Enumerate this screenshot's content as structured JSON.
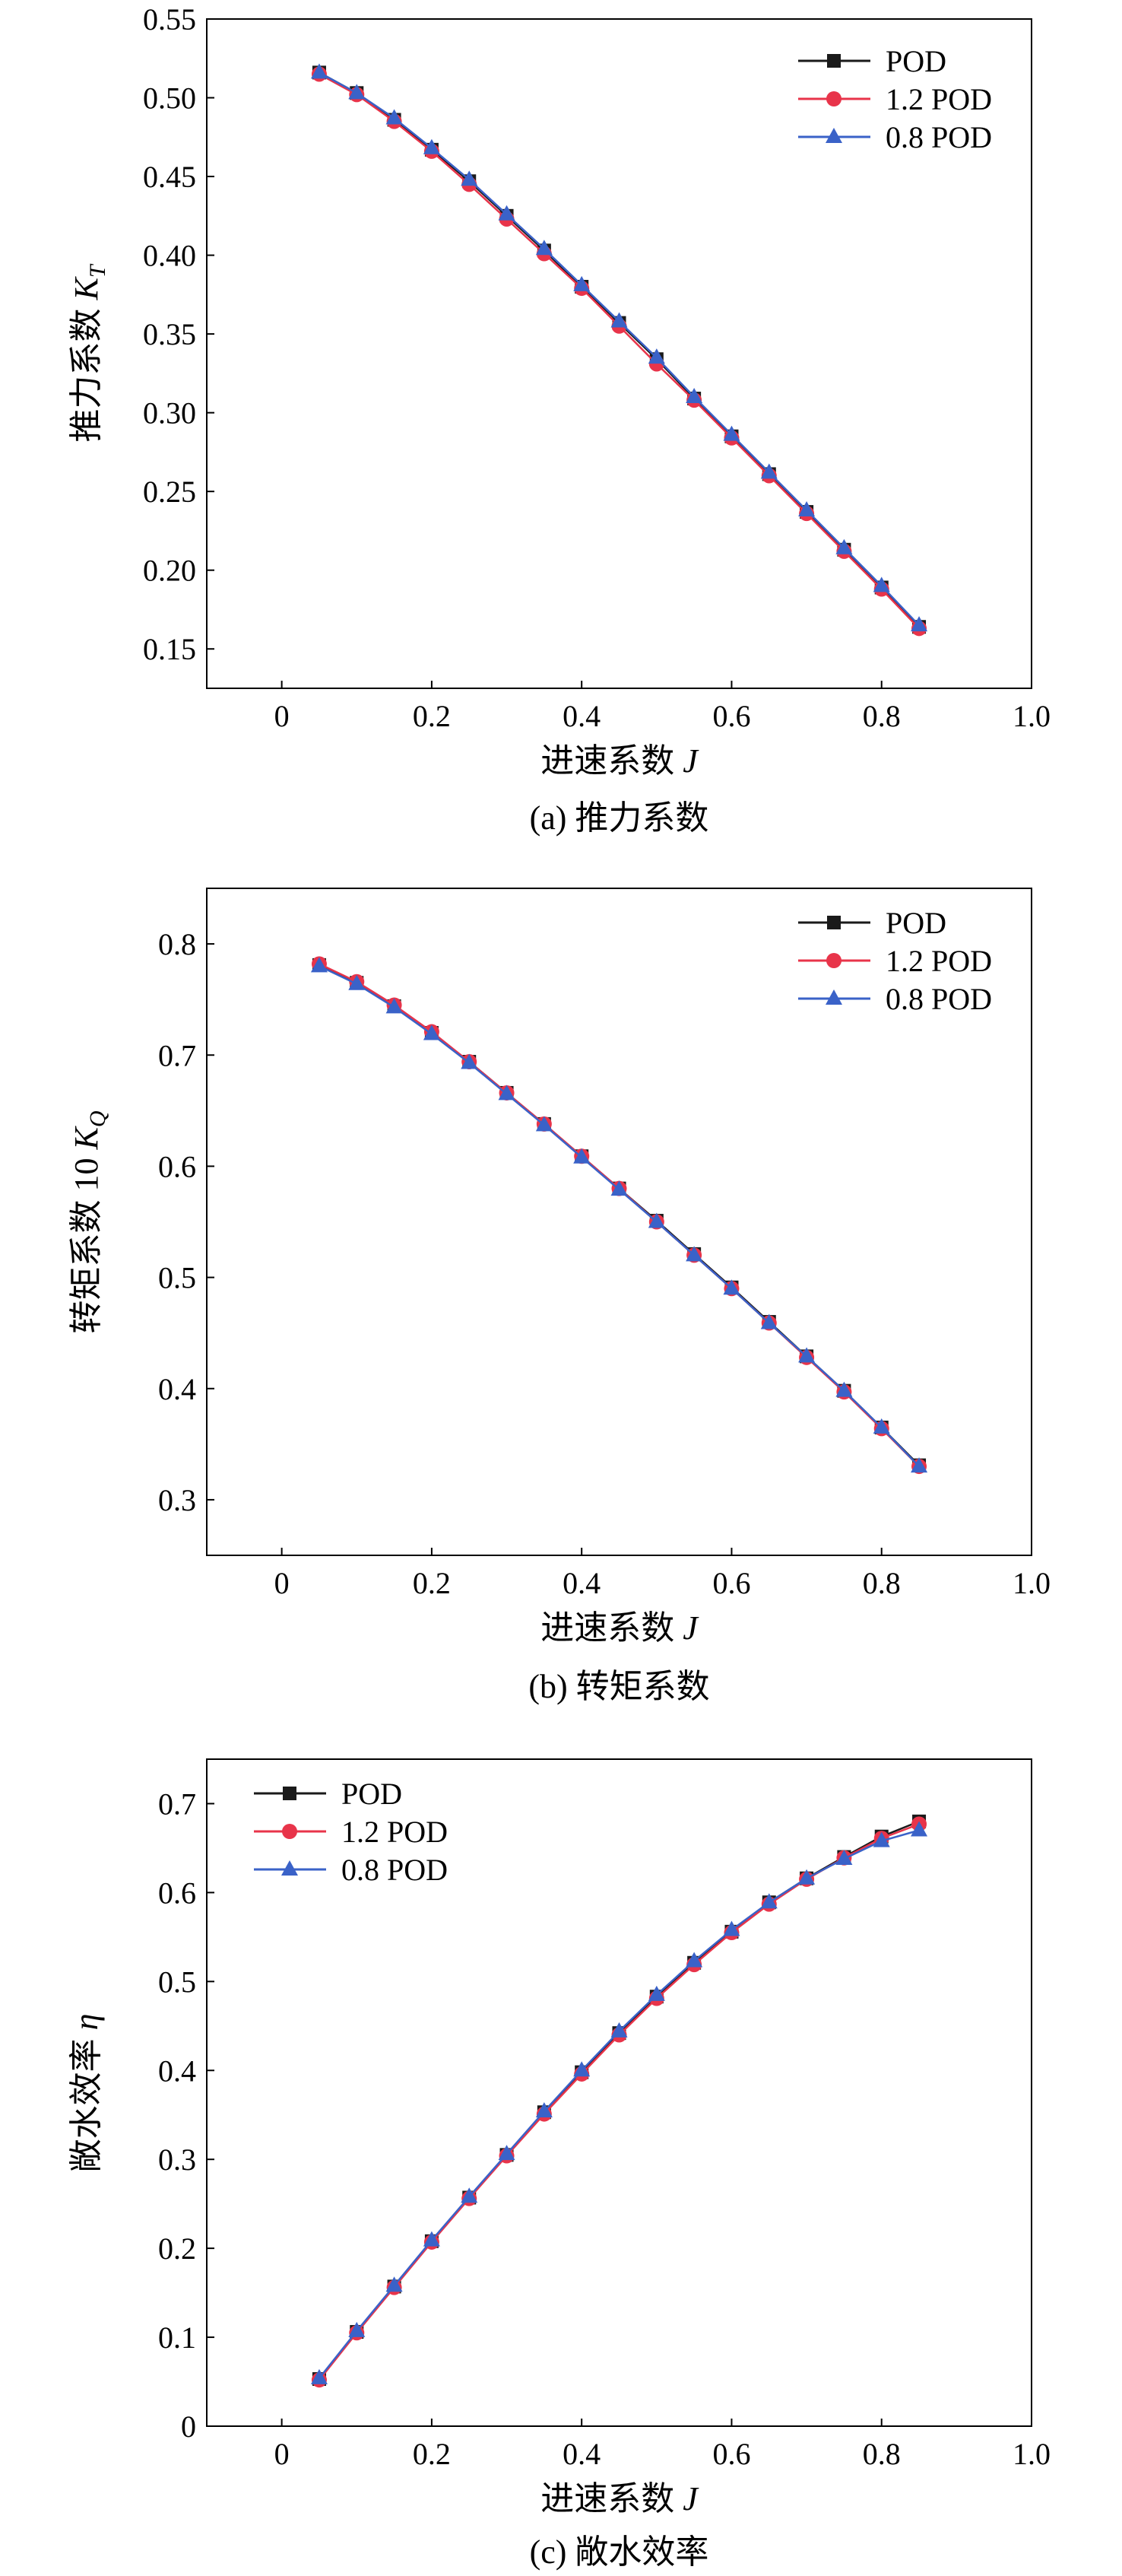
{
  "chart_data": [
    {
      "type": "line",
      "panel": "(a)",
      "caption": "(a) 推力系数",
      "xlabel": "进速系数 J",
      "ylabel": "推力系数 K_T",
      "xlim": [
        -0.1,
        1.0
      ],
      "ylim": [
        0.125,
        0.55
      ],
      "x_ticks": [
        0,
        0.2,
        0.4,
        0.6,
        0.8,
        1.0
      ],
      "y_ticks": [
        0.15,
        0.2,
        0.25,
        0.3,
        0.35,
        0.4,
        0.45,
        0.5,
        0.55
      ],
      "legend_position": "top-right",
      "grid": false,
      "x": [
        0.05,
        0.1,
        0.15,
        0.2,
        0.25,
        0.3,
        0.35,
        0.4,
        0.45,
        0.5,
        0.55,
        0.6,
        0.65,
        0.7,
        0.75,
        0.8,
        0.85
      ],
      "series": [
        {
          "name": "POD",
          "color": "#1a1a1a",
          "marker": "square",
          "values": [
            0.516,
            0.503,
            0.486,
            0.467,
            0.447,
            0.425,
            0.403,
            0.38,
            0.357,
            0.334,
            0.309,
            0.285,
            0.261,
            0.237,
            0.213,
            0.189,
            0.164
          ]
        },
        {
          "name": "1.2 POD",
          "color": "#e8344a",
          "marker": "circle",
          "values": [
            0.515,
            0.502,
            0.485,
            0.466,
            0.445,
            0.423,
            0.401,
            0.379,
            0.355,
            0.331,
            0.308,
            0.284,
            0.26,
            0.236,
            0.212,
            0.188,
            0.163
          ]
        },
        {
          "name": "0.8 POD",
          "color": "#3a62c8",
          "marker": "triangle",
          "values": [
            0.516,
            0.503,
            0.487,
            0.468,
            0.448,
            0.426,
            0.404,
            0.381,
            0.358,
            0.335,
            0.31,
            0.286,
            0.262,
            0.238,
            0.214,
            0.19,
            0.165
          ]
        }
      ]
    },
    {
      "type": "line",
      "panel": "(b)",
      "caption": "(b) 转矩系数",
      "xlabel": "进速系数 J",
      "ylabel": "转矩系数 10 K_Q",
      "xlim": [
        -0.1,
        1.0
      ],
      "ylim": [
        0.25,
        0.85
      ],
      "x_ticks": [
        0,
        0.2,
        0.4,
        0.6,
        0.8,
        1.0
      ],
      "y_ticks": [
        0.3,
        0.4,
        0.5,
        0.6,
        0.7,
        0.8
      ],
      "legend_position": "top-right",
      "grid": false,
      "x": [
        0.05,
        0.1,
        0.15,
        0.2,
        0.25,
        0.3,
        0.35,
        0.4,
        0.45,
        0.5,
        0.55,
        0.6,
        0.65,
        0.7,
        0.75,
        0.8,
        0.85
      ],
      "series": [
        {
          "name": "POD",
          "color": "#1a1a1a",
          "marker": "square",
          "values": [
            0.781,
            0.765,
            0.744,
            0.72,
            0.694,
            0.666,
            0.638,
            0.609,
            0.58,
            0.551,
            0.521,
            0.491,
            0.46,
            0.429,
            0.398,
            0.365,
            0.331
          ]
        },
        {
          "name": "1.2 POD",
          "color": "#e8344a",
          "marker": "circle",
          "values": [
            0.782,
            0.766,
            0.745,
            0.721,
            0.694,
            0.666,
            0.638,
            0.609,
            0.58,
            0.55,
            0.52,
            0.49,
            0.459,
            0.428,
            0.397,
            0.364,
            0.33
          ]
        },
        {
          "name": "0.8 POD",
          "color": "#3a62c8",
          "marker": "triangle",
          "values": [
            0.78,
            0.764,
            0.743,
            0.719,
            0.693,
            0.665,
            0.637,
            0.608,
            0.579,
            0.55,
            0.52,
            0.49,
            0.459,
            0.429,
            0.398,
            0.365,
            0.33
          ]
        }
      ]
    },
    {
      "type": "line",
      "panel": "(c)",
      "caption": "(c) 敞水效率",
      "xlabel": "进速系数 J",
      "ylabel": "敞水效率 η",
      "xlim": [
        -0.1,
        1.0
      ],
      "ylim": [
        0,
        0.75
      ],
      "x_ticks": [
        0,
        0.2,
        0.4,
        0.6,
        0.8,
        1.0
      ],
      "y_ticks": [
        0,
        0.1,
        0.2,
        0.3,
        0.4,
        0.5,
        0.6,
        0.7
      ],
      "legend_position": "top-left",
      "grid": false,
      "x": [
        0.05,
        0.1,
        0.15,
        0.2,
        0.25,
        0.3,
        0.35,
        0.4,
        0.45,
        0.5,
        0.55,
        0.6,
        0.65,
        0.7,
        0.75,
        0.8,
        0.85
      ],
      "series": [
        {
          "name": "POD",
          "color": "#1a1a1a",
          "marker": "square",
          "values": [
            0.053,
            0.106,
            0.157,
            0.208,
            0.257,
            0.305,
            0.353,
            0.398,
            0.442,
            0.483,
            0.521,
            0.556,
            0.589,
            0.616,
            0.64,
            0.663,
            0.68
          ]
        },
        {
          "name": "1.2 POD",
          "color": "#e8344a",
          "marker": "circle",
          "values": [
            0.052,
            0.105,
            0.156,
            0.207,
            0.256,
            0.304,
            0.351,
            0.396,
            0.44,
            0.481,
            0.519,
            0.555,
            0.587,
            0.615,
            0.639,
            0.661,
            0.677
          ]
        },
        {
          "name": "0.8 POD",
          "color": "#3a62c8",
          "marker": "triangle",
          "values": [
            0.054,
            0.107,
            0.158,
            0.209,
            0.258,
            0.306,
            0.354,
            0.4,
            0.444,
            0.485,
            0.523,
            0.558,
            0.589,
            0.616,
            0.638,
            0.658,
            0.67
          ]
        }
      ]
    }
  ]
}
